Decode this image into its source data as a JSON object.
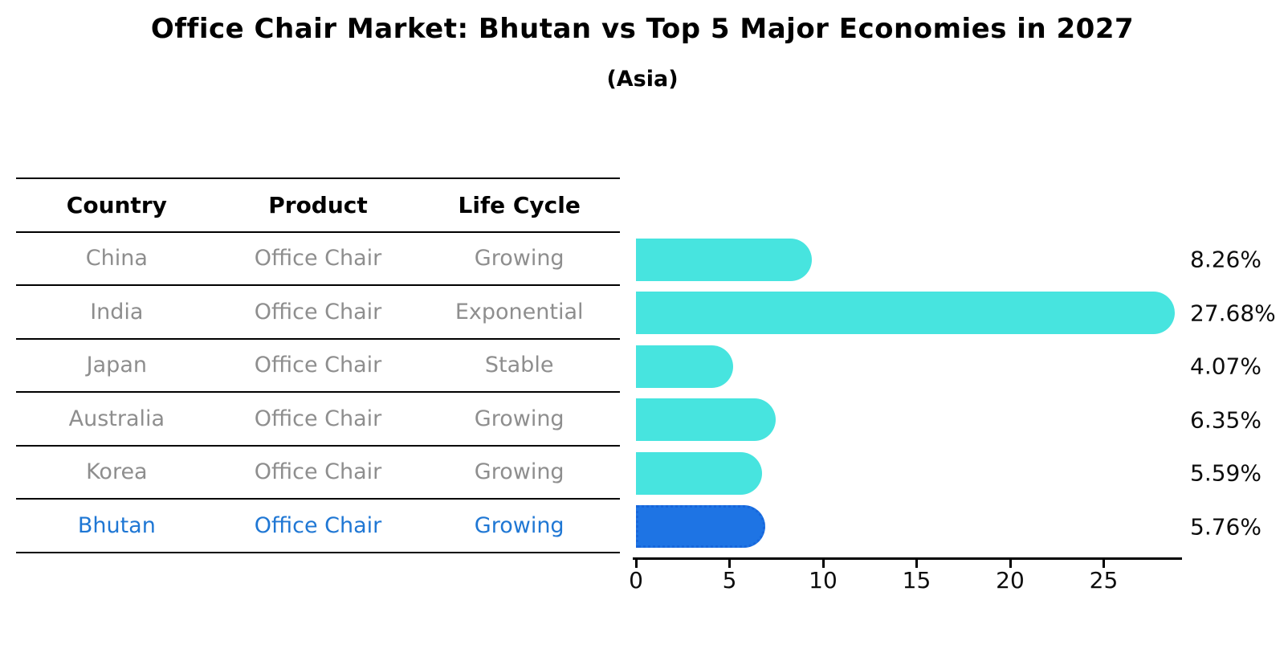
{
  "title": "Office Chair Market: Bhutan vs Top 5 Major Economies in 2027",
  "subtitle": "(Asia)",
  "table": {
    "headers": [
      "Country",
      "Product",
      "Life Cycle"
    ],
    "rows": [
      {
        "country": "China",
        "product": "Office Chair",
        "life_cycle": "Growing",
        "highlighted": false
      },
      {
        "country": "India",
        "product": "Office Chair",
        "life_cycle": "Exponential",
        "highlighted": false
      },
      {
        "country": "Japan",
        "product": "Office Chair",
        "life_cycle": "Stable",
        "highlighted": false
      },
      {
        "country": "Australia",
        "product": "Office Chair",
        "life_cycle": "Growing",
        "highlighted": false
      },
      {
        "country": "Korea",
        "product": "Office Chair",
        "life_cycle": "Growing",
        "highlighted": false
      },
      {
        "country": "Bhutan",
        "product": "Office Chair",
        "life_cycle": "Growing",
        "highlighted": true
      }
    ]
  },
  "chart_data": {
    "type": "bar",
    "orientation": "horizontal",
    "title": "Office Chair Market: Bhutan vs Top 5 Major Economies in 2027",
    "subtitle": "(Asia)",
    "categories": [
      "China",
      "India",
      "Japan",
      "Australia",
      "Korea",
      "Bhutan"
    ],
    "values": [
      8.26,
      27.68,
      4.07,
      6.35,
      5.59,
      5.76
    ],
    "value_labels": [
      "8.26%",
      "27.68%",
      "4.07%",
      "6.35%",
      "5.59%",
      "5.76%"
    ],
    "x_ticks": [
      0,
      5,
      10,
      15,
      20,
      25
    ],
    "xlim": [
      0,
      29.3
    ],
    "grid": false,
    "legend": "none",
    "highlight_index": 5
  },
  "colors": {
    "bar": "#47e4df",
    "highlight_bar": "#1e74e4",
    "highlight_bar_edge": "#1766db",
    "highlight_text": "#1f77d4",
    "row_text": "#8e8e8e",
    "heading_text": "#000000",
    "axis": "#000000"
  }
}
